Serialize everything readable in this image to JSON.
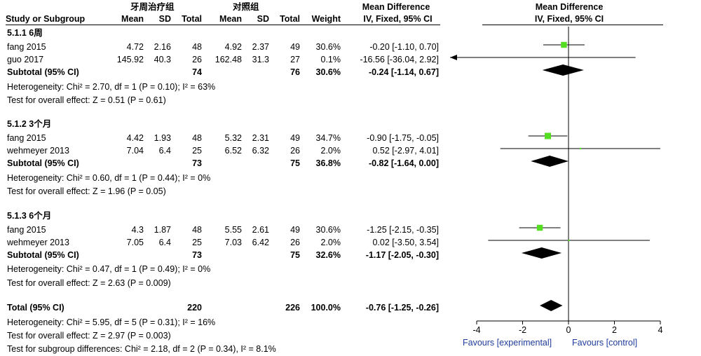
{
  "header": {
    "group_exp": "牙周治疗组",
    "group_ctl": "对照组",
    "md_title": "Mean Difference",
    "plot_title": "Mean Difference",
    "plot_method": "IV, Fixed, 95% CI",
    "cols": {
      "study": "Study or Subgroup",
      "mean1": "Mean",
      "sd1": "SD",
      "total1": "Total",
      "mean2": "Mean",
      "sd2": "SD",
      "total2": "Total",
      "weight": "Weight",
      "ci": "IV, Fixed, 95% CI"
    }
  },
  "subgroups": [
    {
      "title": "5.1.1 6周",
      "studies": [
        {
          "name": "fang 2015",
          "mean1": "4.72",
          "sd1": "2.16",
          "n1": "48",
          "mean2": "4.92",
          "sd2": "2.37",
          "n2": "49",
          "weight": "30.6%",
          "ci": "-0.20 [-1.10, 0.70]"
        },
        {
          "name": "guo 2017",
          "mean1": "145.92",
          "sd1": "40.3",
          "n1": "26",
          "mean2": "162.48",
          "sd2": "31.3",
          "n2": "27",
          "weight": "0.1%",
          "ci": "-16.56 [-36.04, 2.92]"
        }
      ],
      "subtotal": {
        "label": "Subtotal (95% CI)",
        "n1": "74",
        "n2": "76",
        "weight": "30.6%",
        "ci": "-0.24 [-1.14, 0.67]"
      },
      "heterogeneity": "Heterogeneity: Chi² = 2.70, df = 1 (P = 0.10); I² = 63%",
      "overall": "Test for overall effect: Z = 0.51 (P = 0.61)"
    },
    {
      "title": "5.1.2 3个月",
      "studies": [
        {
          "name": "fang 2015",
          "mean1": "4.42",
          "sd1": "1.93",
          "n1": "48",
          "mean2": "5.32",
          "sd2": "2.31",
          "n2": "49",
          "weight": "34.7%",
          "ci": "-0.90 [-1.75, -0.05]"
        },
        {
          "name": "wehmeyer 2013",
          "mean1": "7.04",
          "sd1": "6.4",
          "n1": "25",
          "mean2": "6.52",
          "sd2": "6.32",
          "n2": "26",
          "weight": "2.0%",
          "ci": "0.52 [-2.97, 4.01]"
        }
      ],
      "subtotal": {
        "label": "Subtotal (95% CI)",
        "n1": "73",
        "n2": "75",
        "weight": "36.8%",
        "ci": "-0.82 [-1.64, 0.00]"
      },
      "heterogeneity": "Heterogeneity: Chi² = 0.60, df = 1 (P = 0.44); I² = 0%",
      "overall": "Test for overall effect: Z = 1.96 (P = 0.05)"
    },
    {
      "title": "5.1.3 6个月",
      "studies": [
        {
          "name": "fang 2015",
          "mean1": "4.3",
          "sd1": "1.87",
          "n1": "48",
          "mean2": "5.55",
          "sd2": "2.61",
          "n2": "49",
          "weight": "30.6%",
          "ci": "-1.25 [-2.15, -0.35]"
        },
        {
          "name": "wehmeyer 2013",
          "mean1": "7.05",
          "sd1": "6.4",
          "n1": "25",
          "mean2": "7.03",
          "sd2": "6.42",
          "n2": "26",
          "weight": "2.0%",
          "ci": "0.02 [-3.50, 3.54]"
        }
      ],
      "subtotal": {
        "label": "Subtotal (95% CI)",
        "n1": "73",
        "n2": "75",
        "weight": "32.6%",
        "ci": "-1.17 [-2.05, -0.30]"
      },
      "heterogeneity": "Heterogeneity: Chi² = 0.47, df = 1 (P = 0.49); I² = 0%",
      "overall": "Test for overall effect: Z = 2.63 (P = 0.009)"
    }
  ],
  "total": {
    "label": "Total (95% CI)",
    "n1": "220",
    "n2": "226",
    "weight": "100.0%",
    "ci": "-0.76 [-1.25, -0.26]",
    "heterogeneity": "Heterogeneity: Chi² = 5.95, df = 5 (P = 0.31); I² = 16%",
    "overall": "Test for overall effect: Z = 2.97 (P = 0.003)",
    "subgroup_diff": "Test for subgroup differences: Chi² = 2.18, df = 2 (P = 0.34), I² = 8.1%"
  },
  "axis": {
    "favours_left": "Favours [experimental]",
    "favours_right": "Favours [control]"
  },
  "chart_data": {
    "type": "forest",
    "xlim": [
      -4,
      4
    ],
    "ticks": [
      -4,
      -2,
      0,
      2,
      4
    ],
    "tick_labels": [
      "-4",
      "-2",
      "0",
      "2",
      "4"
    ],
    "square_color": "#55dd22",
    "diamond_color": "#000000",
    "studies": [
      {
        "label": "fang 2015",
        "subgroup": "5.1.1 6周",
        "md": -0.2,
        "lo": -1.1,
        "hi": 0.7,
        "weight": 30.6
      },
      {
        "label": "guo 2017",
        "subgroup": "5.1.1 6周",
        "md": -16.56,
        "lo": -36.04,
        "hi": 2.92,
        "weight": 0.1
      },
      {
        "label": "fang 2015",
        "subgroup": "5.1.2 3个月",
        "md": -0.9,
        "lo": -1.75,
        "hi": -0.05,
        "weight": 34.7
      },
      {
        "label": "wehmeyer 2013",
        "subgroup": "5.1.2 3个月",
        "md": 0.52,
        "lo": -2.97,
        "hi": 4.01,
        "weight": 2.0
      },
      {
        "label": "fang 2015",
        "subgroup": "5.1.3 6个月",
        "md": -1.25,
        "lo": -2.15,
        "hi": -0.35,
        "weight": 30.6
      },
      {
        "label": "wehmeyer 2013",
        "subgroup": "5.1.3 6个月",
        "md": 0.02,
        "lo": -3.5,
        "hi": 3.54,
        "weight": 2.0
      }
    ],
    "diamonds": [
      {
        "label": "Subtotal 5.1.1",
        "md": -0.24,
        "lo": -1.14,
        "hi": 0.67
      },
      {
        "label": "Subtotal 5.1.2",
        "md": -0.82,
        "lo": -1.64,
        "hi": 0.0
      },
      {
        "label": "Subtotal 5.1.3",
        "md": -1.17,
        "lo": -2.05,
        "hi": -0.3
      },
      {
        "label": "Total",
        "md": -0.76,
        "lo": -1.25,
        "hi": -0.26
      }
    ]
  }
}
